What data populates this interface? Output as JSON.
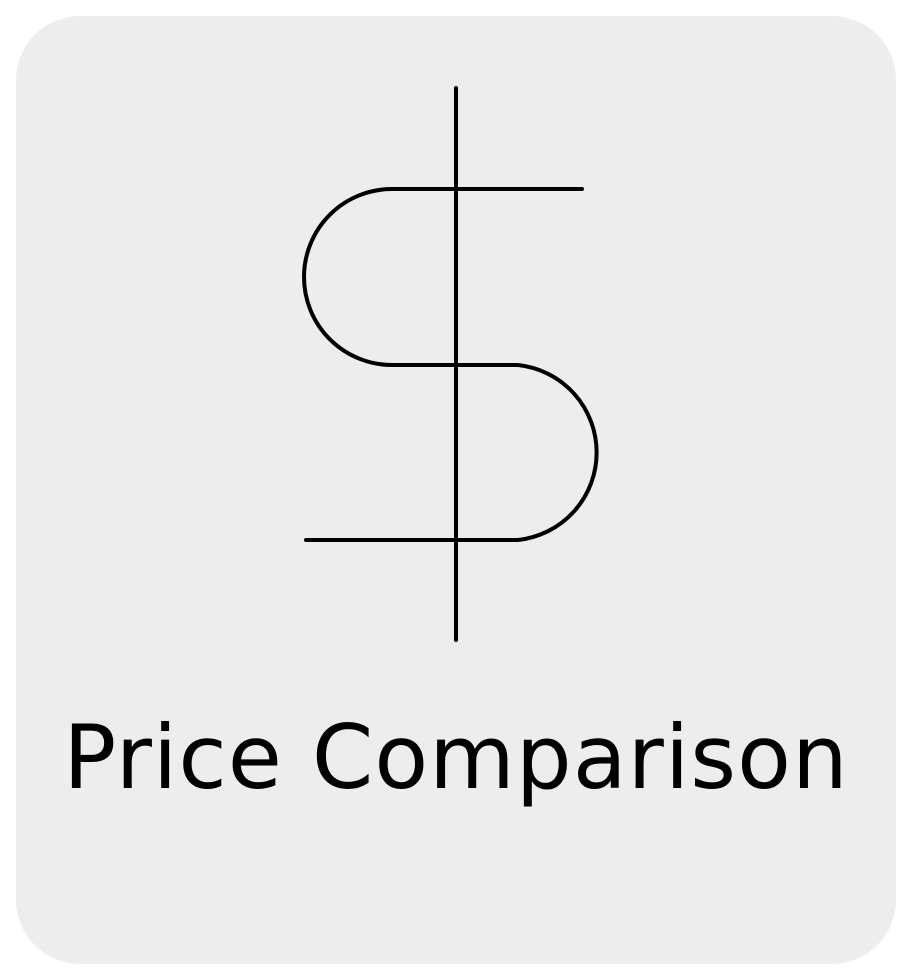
{
  "tile": {
    "icon_name": "dollar-sign-icon",
    "label": "Price Comparison",
    "background_color": "#ededed",
    "foreground_color": "#000000"
  }
}
